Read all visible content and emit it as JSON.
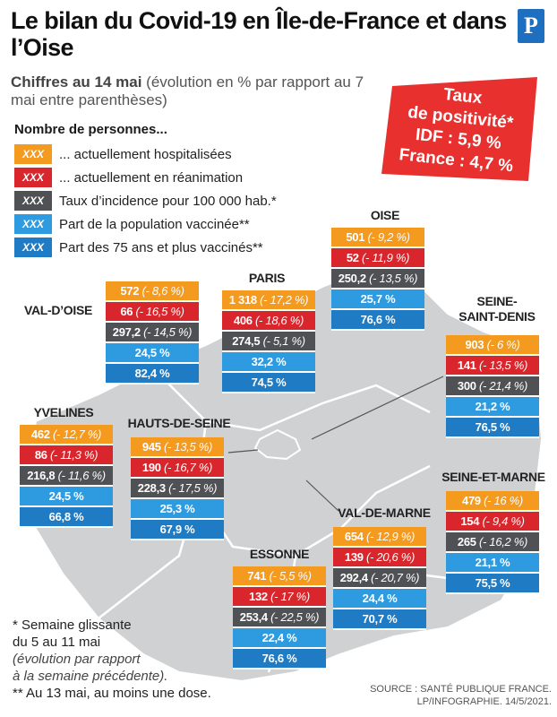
{
  "title": "Le bilan du Covid-19 en Île-de-France et dans l’Oise",
  "subtitle_bold": "Chiffres au 14 mai",
  "subtitle_rest": " (évolution en % par rapport au 7 mai entre parenthèses)",
  "logo_letter": "P",
  "legend": {
    "title": "Nombre de personnes...",
    "swatch_text": "XXX",
    "items": [
      {
        "label": "... actuellement hospitalisées",
        "color": "#f49a1f"
      },
      {
        "label": "... actuellement en réanimation",
        "color": "#d9262c"
      },
      {
        "label": "Taux d’incidence pour 100 000 hab.*",
        "color": "#4f5154"
      },
      {
        "label": "Part de la population vaccinée**",
        "color": "#2e9be0"
      },
      {
        "label": "Part des 75 ans et plus vaccinés**",
        "color": "#1e7bc4"
      }
    ]
  },
  "positivity": {
    "line1": "Taux",
    "line2": "de positivité*",
    "line3": "IDF : 5,9 %",
    "line4": "France : 4,7 %",
    "color": "#e8302f"
  },
  "regions": [
    {
      "id": "oise",
      "name": "OISE",
      "hosp": "501",
      "hosp_ev": "(- 9,2 %)",
      "rea": "52",
      "rea_ev": "(- 11,9 %)",
      "inc": "250,2",
      "inc_ev": "(- 13,5 %)",
      "vacc": "25,7 %",
      "vacc75": "76,6 %"
    },
    {
      "id": "val-d-oise",
      "name": "VAL-D’OISE",
      "hosp": "572",
      "hosp_ev": "(- 8,6 %)",
      "rea": "66",
      "rea_ev": "(- 16,5 %)",
      "inc": "297,2",
      "inc_ev": "(- 14,5 %)",
      "vacc": "24,5 %",
      "vacc75": "82,4 %"
    },
    {
      "id": "paris",
      "name": "PARIS",
      "hosp": "1 318",
      "hosp_ev": "(- 17,2 %)",
      "rea": "406",
      "rea_ev": "(- 18,6 %)",
      "inc": "274,5",
      "inc_ev": "(- 5,1 %)",
      "vacc": "32,2 %",
      "vacc75": "74,5 %"
    },
    {
      "id": "seine-saint-denis",
      "name": "SEINE-\nSAINT-DENIS",
      "hosp": "903",
      "hosp_ev": "(- 6 %)",
      "rea": "141",
      "rea_ev": "(- 13,5 %)",
      "inc": "300",
      "inc_ev": "(- 21,4 %)",
      "vacc": "21,2 %",
      "vacc75": "76,5 %"
    },
    {
      "id": "yvelines",
      "name": "YVELINES",
      "hosp": "462",
      "hosp_ev": "(- 12,7 %)",
      "rea": "86",
      "rea_ev": "(- 11,3 %)",
      "inc": "216,8",
      "inc_ev": "(- 11,6 %)",
      "vacc": "24,5 %",
      "vacc75": "66,8 %"
    },
    {
      "id": "hauts-de-seine",
      "name": "HAUTS-DE-SEINE",
      "hosp": "945",
      "hosp_ev": "(- 13,5 %)",
      "rea": "190",
      "rea_ev": "(- 16,7 %)",
      "inc": "228,3",
      "inc_ev": "(- 17,5 %)",
      "vacc": "25,3 %",
      "vacc75": "67,9 %"
    },
    {
      "id": "seine-et-marne",
      "name": "SEINE-ET-MARNE",
      "hosp": "479",
      "hosp_ev": "(- 16 %)",
      "rea": "154",
      "rea_ev": "(- 9,4 %)",
      "inc": "265",
      "inc_ev": "(- 16,2 %)",
      "vacc": "21,1 %",
      "vacc75": "75,5 %"
    },
    {
      "id": "val-de-marne",
      "name": "VAL-DE-MARNE",
      "hosp": "654",
      "hosp_ev": "(- 12,9 %)",
      "rea": "139",
      "rea_ev": "(- 20,6 %)",
      "inc": "292,4",
      "inc_ev": "(- 20,7 %)",
      "vacc": "24,4 %",
      "vacc75": "70,7 %"
    },
    {
      "id": "essonne",
      "name": "ESSONNE",
      "hosp": "741",
      "hosp_ev": "(- 5,5 %)",
      "rea": "132",
      "rea_ev": "(- 17 %)",
      "inc": "253,4",
      "inc_ev": "(- 22,5 %)",
      "vacc": "22,4 %",
      "vacc75": "76,6 %"
    }
  ],
  "notes": {
    "n1": "* Semaine glissante",
    "n2": "du 5 au 11 mai",
    "n3": "(évolution par rapport",
    "n4": "à la semaine précédente).",
    "n5": "** Au 13 mai, au moins une dose."
  },
  "source": {
    "line1": "SOURCE : SANTÉ PUBLIQUE FRANCE.",
    "line2": "LP/INFOGRAPHIE. 14/5/2021."
  }
}
